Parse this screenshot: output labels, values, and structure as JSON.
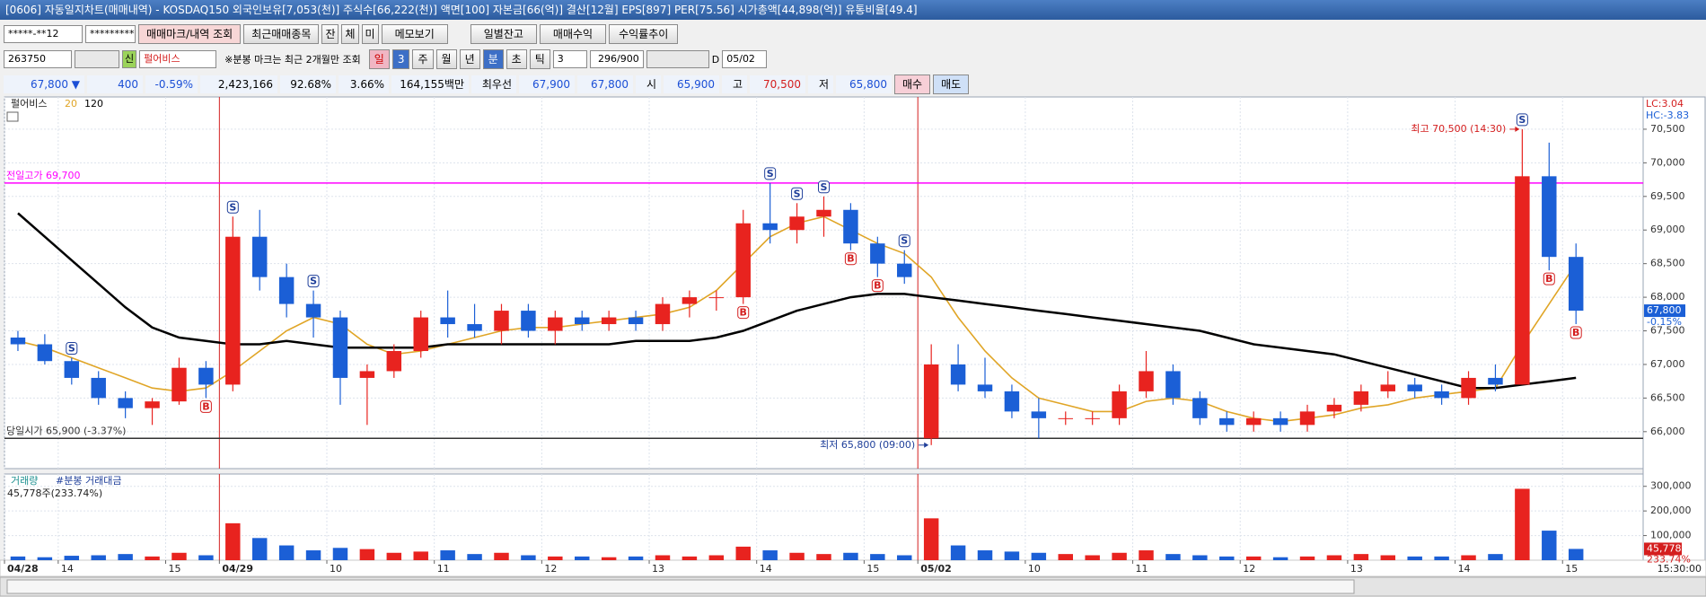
{
  "ui": {
    "title": "[0606] 자동일지차트(매매내역) - KOSDAQ150 외국인보유[7,053(천)] 주식수[66,222(천)] 액면[100] 자본금[66(억)] 결산[12월] EPS[897] PER[75.56] 시가총액[44,898(억)] 유통비율[49.4]",
    "toolbar": {
      "account": "*****-**12",
      "password": "*********",
      "buttons": [
        "매매마크/내역 조회",
        "최근매매종목",
        "잔",
        "체",
        "미",
        "메모보기",
        "일별잔고",
        "매매수익",
        "수익률추이"
      ]
    },
    "search": {
      "code": "263750",
      "badge": "신",
      "name": "펄어비스",
      "note": "※분봉 마크는 최근 2개월만 조회",
      "periods": [
        "일",
        "3",
        "주",
        "월",
        "년",
        "분",
        "초",
        "틱"
      ],
      "interval": "3",
      "count": "296/900",
      "d": "D",
      "date": "05/02"
    },
    "quote": [
      "67,800 ▼",
      "400",
      "-0.59%",
      "2,423,166",
      "92.68%",
      "3.66%",
      "164,155백만",
      "최우선",
      "67,900",
      "67,800",
      "시",
      "65,900",
      "고",
      "70,500",
      "저",
      "65,800"
    ],
    "order_buttons": [
      "매수",
      "매도"
    ],
    "status_time": "15:30:00"
  },
  "chart_data": {
    "type": "candlestick",
    "legend_title": "펄어비스",
    "up_color": "#e8231f",
    "down_color": "#1b5fd6",
    "xlim": [
      0,
      61
    ],
    "xticks": [
      {
        "value": 0,
        "label": "04/28"
      },
      {
        "value": 2,
        "label": "14"
      },
      {
        "value": 6,
        "label": "15"
      },
      {
        "value": 8,
        "label": "04/29"
      },
      {
        "value": 12,
        "label": "10"
      },
      {
        "value": 16,
        "label": "11"
      },
      {
        "value": 20,
        "label": "12"
      },
      {
        "value": 24,
        "label": "13"
      },
      {
        "value": 28,
        "label": "14"
      },
      {
        "value": 32,
        "label": "15"
      },
      {
        "value": 34,
        "label": "05/02"
      },
      {
        "value": 38,
        "label": "10"
      },
      {
        "value": 42,
        "label": "11"
      },
      {
        "value": 46,
        "label": "12"
      },
      {
        "value": 50,
        "label": "13"
      },
      {
        "value": 54,
        "label": "14"
      },
      {
        "value": 58,
        "label": "15"
      }
    ],
    "ylim": [
      65450,
      70980
    ],
    "yticks": [
      {
        "value": 66000,
        "label": "66,000"
      },
      {
        "value": 66500,
        "label": "66,500"
      },
      {
        "value": 67000,
        "label": "67,000"
      },
      {
        "value": 67500,
        "label": "67,500"
      },
      {
        "value": 68000,
        "label": "68,000"
      },
      {
        "value": 68500,
        "label": "68,500"
      },
      {
        "value": 69000,
        "label": "69,000"
      },
      {
        "value": 69500,
        "label": "69,500"
      },
      {
        "value": 70000,
        "label": "70,000"
      },
      {
        "value": 70500,
        "label": "70,500"
      }
    ],
    "open": [
      67400,
      67300,
      67050,
      66800,
      66500,
      66350,
      66450,
      66950,
      66700,
      68900,
      68300,
      67900,
      67700,
      66800,
      66900,
      67200,
      67700,
      67600,
      67500,
      67800,
      67500,
      67700,
      67600,
      67700,
      67600,
      67900,
      68000,
      68000,
      69100,
      69000,
      69200,
      69300,
      68800,
      68500,
      65900,
      67000,
      66700,
      66600,
      66300,
      66200,
      66200,
      66200,
      66600,
      66900,
      66500,
      66200,
      66100,
      66200,
      66100,
      66300,
      66400,
      66600,
      66700,
      66600,
      66500,
      66800,
      66700,
      69800,
      68600
    ],
    "high": [
      67500,
      67450,
      67100,
      66900,
      66600,
      66500,
      67100,
      67050,
      69200,
      69300,
      68500,
      68100,
      67800,
      67000,
      67300,
      67800,
      68100,
      67900,
      67900,
      67900,
      67800,
      67800,
      67800,
      67800,
      68000,
      68100,
      68100,
      69300,
      69700,
      69400,
      69500,
      69400,
      68900,
      68700,
      67300,
      67300,
      67100,
      66700,
      66500,
      66300,
      66300,
      66700,
      67200,
      67000,
      66600,
      66300,
      66300,
      66300,
      66400,
      66500,
      66700,
      66900,
      66800,
      66700,
      66900,
      67000,
      70500,
      70300,
      68800
    ],
    "low": [
      67200,
      67000,
      66700,
      66400,
      66200,
      66100,
      66400,
      66500,
      66600,
      68100,
      67700,
      67400,
      66400,
      66100,
      66800,
      67100,
      67400,
      67400,
      67300,
      67400,
      67300,
      67500,
      67500,
      67500,
      67500,
      67700,
      67800,
      67900,
      68800,
      68800,
      68900,
      68700,
      68300,
      68200,
      65800,
      66600,
      66500,
      66200,
      65900,
      66100,
      66100,
      66100,
      66500,
      66400,
      66100,
      66000,
      66000,
      66000,
      66000,
      66200,
      66300,
      66500,
      66500,
      66400,
      66400,
      66600,
      66700,
      68400,
      67600
    ],
    "close": [
      67300,
      67050,
      66800,
      66500,
      66350,
      66450,
      66950,
      66700,
      68900,
      68300,
      67900,
      67700,
      66800,
      66900,
      67200,
      67700,
      67600,
      67500,
      67800,
      67500,
      67700,
      67600,
      67700,
      67600,
      67900,
      68000,
      68000,
      69100,
      69000,
      69200,
      69300,
      68800,
      68500,
      68300,
      67000,
      66700,
      66600,
      66300,
      66200,
      66200,
      66200,
      66600,
      66900,
      66500,
      66200,
      66100,
      66200,
      66100,
      66300,
      66400,
      66600,
      66700,
      66600,
      66500,
      66800,
      66700,
      69800,
      68600,
      67800
    ],
    "series": [
      {
        "name": "20",
        "color": "#e0a526",
        "values": [
          67350,
          67250,
          67100,
          66950,
          66800,
          66650,
          66600,
          66650,
          66900,
          67200,
          67500,
          67700,
          67600,
          67300,
          67150,
          67200,
          67300,
          67400,
          67500,
          67550,
          67550,
          67600,
          67650,
          67700,
          67750,
          67850,
          68100,
          68500,
          68900,
          69100,
          69200,
          69000,
          68800,
          68650,
          68300,
          67700,
          67200,
          66800,
          66500,
          66400,
          66300,
          66300,
          66450,
          66500,
          66450,
          66300,
          66200,
          66150,
          66200,
          66250,
          66350,
          66400,
          66500,
          66550,
          66600,
          66650,
          67300,
          67900,
          68500
        ]
      },
      {
        "name": "120",
        "color": "#000000",
        "values": [
          69250,
          68900,
          68550,
          68200,
          67850,
          67550,
          67400,
          67350,
          67300,
          67300,
          67350,
          67300,
          67250,
          67250,
          67250,
          67250,
          67300,
          67300,
          67300,
          67300,
          67300,
          67300,
          67300,
          67350,
          67350,
          67350,
          67400,
          67500,
          67650,
          67800,
          67900,
          68000,
          68050,
          68050,
          68000,
          67950,
          67900,
          67850,
          67800,
          67750,
          67700,
          67650,
          67600,
          67550,
          67500,
          67400,
          67300,
          67250,
          67200,
          67150,
          67050,
          66950,
          66850,
          66750,
          66650,
          66650,
          66700,
          66750,
          66800
        ]
      }
    ],
    "reference_lines": [
      {
        "label": "전일고가 69,700",
        "value": 69700,
        "color": "#ff00ff"
      },
      {
        "label": "당일시가 65,900 (-3.37%)",
        "value": 65900,
        "color": "#333333"
      }
    ],
    "annotations": [
      {
        "label": "최고 70,500 (14:30)",
        "at": 56,
        "value": 70500,
        "color": "#d41e1e"
      },
      {
        "label": "최저 65,800 (09:00)",
        "at": 34,
        "value": 65800,
        "color": "#1f3f9a"
      }
    ],
    "signals": [
      {
        "at": 2,
        "label": "S"
      },
      {
        "at": 7,
        "label": "B"
      },
      {
        "at": 8,
        "label": "S"
      },
      {
        "at": 11,
        "label": "S"
      },
      {
        "at": 27,
        "label": "B"
      },
      {
        "at": 28,
        "label": "S"
      },
      {
        "at": 29,
        "label": "S"
      },
      {
        "at": 30,
        "label": "S"
      },
      {
        "at": 31,
        "label": "B"
      },
      {
        "at": 32,
        "label": "B"
      },
      {
        "at": 33,
        "label": "S"
      },
      {
        "at": 56,
        "label": "S"
      },
      {
        "at": 57,
        "label": "B"
      },
      {
        "at": 58,
        "label": "B"
      }
    ],
    "corner_labels": [
      {
        "label": "LC:3.04",
        "color": "#d41e1e"
      },
      {
        "label": "HC:-3.83",
        "color": "#1b5fd6"
      }
    ],
    "last_price": {
      "value": 67800,
      "label": "67,800",
      "change": "-0.15%"
    },
    "volume_title": "거래량",
    "volume_subtitle": "#분봉 거래대금",
    "volume_note": "45,778주(233.74%)",
    "volume": [
      15000,
      12000,
      18000,
      20000,
      25000,
      15000,
      30000,
      20000,
      150000,
      90000,
      60000,
      40000,
      50000,
      45000,
      30000,
      35000,
      40000,
      25000,
      30000,
      20000,
      15000,
      15000,
      12000,
      15000,
      20000,
      15000,
      20000,
      55000,
      40000,
      30000,
      25000,
      30000,
      25000,
      20000,
      170000,
      60000,
      40000,
      35000,
      30000,
      25000,
      20000,
      30000,
      40000,
      25000,
      20000,
      15000,
      15000,
      12000,
      15000,
      20000,
      25000,
      20000,
      15000,
      15000,
      20000,
      25000,
      290000,
      120000,
      45778
    ],
    "volume_ylim": [
      0,
      350000
    ],
    "volume_yticks": [
      {
        "value": 100000,
        "label": "100,000"
      },
      {
        "value": 200000,
        "label": "200,000"
      },
      {
        "value": 300000,
        "label": "300,000"
      }
    ],
    "last_volume": {
      "value": 45778,
      "label": "45,778",
      "change": "233.74%"
    },
    "grid": true
  }
}
